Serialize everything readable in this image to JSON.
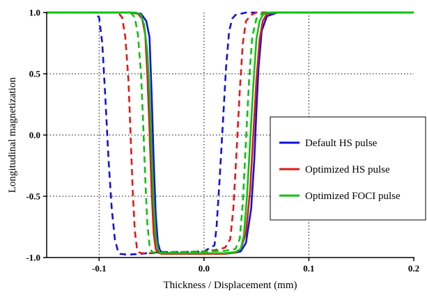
{
  "chart_data": {
    "type": "line",
    "title": "",
    "xlabel": "Thickness / Displacement (mm)",
    "ylabel": "Longitudinal magnetization",
    "xlim": [
      -0.15,
      0.2
    ],
    "ylim": [
      -1.0,
      1.0
    ],
    "xticks": [
      -0.1,
      0.0,
      0.1,
      0.2
    ],
    "xtick_labels": [
      "-0.1",
      "0.0",
      "0.1",
      "0.2"
    ],
    "yticks": [
      -1.0,
      -0.5,
      0.0,
      0.5,
      1.0
    ],
    "ytick_labels": [
      "-1.0",
      "-0.5",
      "0.0",
      "0.5",
      "1.0"
    ],
    "grid": "dotted, at x = -0.1, 0.0, 0.1 and y = -0.5, 0.0, 0.5",
    "legend_position": "right",
    "series": [
      {
        "name": "Default HS pulse",
        "color": "#1010e0",
        "style": "solid",
        "x": [
          -0.15,
          -0.07,
          -0.06,
          -0.055,
          -0.052,
          -0.05,
          -0.048,
          -0.046,
          -0.044,
          -0.042,
          -0.04,
          -0.03,
          -0.02,
          -0.01,
          0.0,
          0.01,
          0.02,
          0.03,
          0.035,
          0.04,
          0.045,
          0.048,
          0.05,
          0.052,
          0.055,
          0.06,
          0.07,
          0.2
        ],
        "y": [
          1.0,
          1.0,
          0.99,
          0.93,
          0.8,
          0.35,
          -0.2,
          -0.65,
          -0.88,
          -0.94,
          -0.96,
          -0.965,
          -0.965,
          -0.965,
          -0.965,
          -0.965,
          -0.965,
          -0.96,
          -0.95,
          -0.88,
          -0.6,
          -0.2,
          0.2,
          0.55,
          0.85,
          0.97,
          1.0,
          1.0
        ]
      },
      {
        "name": "",
        "color": "#1010e0",
        "style": "dashed",
        "x": [
          -0.15,
          -0.105,
          -0.1,
          -0.097,
          -0.094,
          -0.091,
          -0.088,
          -0.085,
          -0.082,
          -0.08,
          -0.075,
          -0.07,
          -0.06,
          -0.05,
          -0.04,
          -0.02,
          0.0,
          0.01,
          0.012,
          0.015,
          0.018,
          0.021,
          0.024,
          0.027,
          0.03,
          0.035,
          0.04,
          0.05,
          0.2
        ],
        "y": [
          1.0,
          1.0,
          0.96,
          0.75,
          0.3,
          -0.2,
          -0.6,
          -0.85,
          -0.95,
          -0.97,
          -0.975,
          -0.975,
          -0.97,
          -0.96,
          -0.955,
          -0.955,
          -0.95,
          -0.9,
          -0.75,
          -0.35,
          0.1,
          0.55,
          0.85,
          0.95,
          0.98,
          0.99,
          1.0,
          1.0,
          1.0
        ]
      },
      {
        "name": "Optimized HS pulse",
        "color": "#e01818",
        "style": "solid",
        "x": [
          -0.15,
          -0.07,
          -0.063,
          -0.059,
          -0.056,
          -0.054,
          -0.052,
          -0.05,
          -0.048,
          -0.046,
          -0.044,
          -0.04,
          -0.03,
          -0.02,
          -0.01,
          0.0,
          0.01,
          0.02,
          0.03,
          0.035,
          0.04,
          0.044,
          0.047,
          0.05,
          0.053,
          0.056,
          0.06,
          0.07,
          0.2
        ],
        "y": [
          1.0,
          1.0,
          0.99,
          0.95,
          0.82,
          0.5,
          0.05,
          -0.45,
          -0.8,
          -0.93,
          -0.96,
          -0.97,
          -0.97,
          -0.97,
          -0.97,
          -0.97,
          -0.97,
          -0.97,
          -0.96,
          -0.93,
          -0.8,
          -0.45,
          0.0,
          0.45,
          0.78,
          0.93,
          0.99,
          1.0,
          1.0
        ]
      },
      {
        "name": "",
        "color": "#e01818",
        "style": "dashed",
        "x": [
          -0.15,
          -0.082,
          -0.078,
          -0.075,
          -0.072,
          -0.07,
          -0.068,
          -0.066,
          -0.064,
          -0.062,
          -0.06,
          -0.055,
          -0.05,
          -0.04,
          -0.02,
          0.0,
          0.01,
          0.02,
          0.025,
          0.028,
          0.031,
          0.034,
          0.037,
          0.04,
          0.045,
          0.05,
          0.2
        ],
        "y": [
          1.0,
          1.0,
          0.96,
          0.8,
          0.45,
          0.0,
          -0.45,
          -0.78,
          -0.92,
          -0.955,
          -0.965,
          -0.965,
          -0.965,
          -0.96,
          -0.955,
          -0.95,
          -0.94,
          -0.92,
          -0.85,
          -0.6,
          -0.15,
          0.35,
          0.75,
          0.93,
          0.98,
          1.0,
          1.0
        ]
      },
      {
        "name": "Optimized FOCI pulse",
        "color": "#10c010",
        "style": "solid",
        "x": [
          -0.15,
          -0.065,
          -0.06,
          -0.057,
          -0.054,
          -0.052,
          -0.05,
          -0.048,
          -0.046,
          -0.044,
          -0.042,
          -0.04,
          -0.03,
          -0.02,
          -0.01,
          0.0,
          0.01,
          0.02,
          0.03,
          0.035,
          0.038,
          0.041,
          0.044,
          0.047,
          0.05,
          0.053,
          0.056,
          0.06,
          0.2
        ],
        "y": [
          1.0,
          1.0,
          0.98,
          0.9,
          0.68,
          0.35,
          -0.1,
          -0.55,
          -0.83,
          -0.93,
          -0.96,
          -0.965,
          -0.965,
          -0.965,
          -0.965,
          -0.965,
          -0.965,
          -0.965,
          -0.955,
          -0.93,
          -0.82,
          -0.5,
          -0.05,
          0.4,
          0.78,
          0.93,
          0.98,
          1.0,
          1.0
        ]
      },
      {
        "name": "",
        "color": "#10c010",
        "style": "dashed",
        "x": [
          -0.15,
          -0.07,
          -0.066,
          -0.063,
          -0.06,
          -0.058,
          -0.056,
          -0.054,
          -0.052,
          -0.05,
          -0.048,
          -0.045,
          -0.04,
          -0.02,
          0.0,
          0.02,
          0.03,
          0.034,
          0.037,
          0.04,
          0.043,
          0.046,
          0.05,
          0.055,
          0.06,
          0.2
        ],
        "y": [
          1.0,
          1.0,
          0.96,
          0.82,
          0.5,
          0.1,
          -0.35,
          -0.72,
          -0.9,
          -0.95,
          -0.96,
          -0.96,
          -0.96,
          -0.955,
          -0.95,
          -0.945,
          -0.93,
          -0.85,
          -0.55,
          -0.05,
          0.45,
          0.8,
          0.95,
          0.99,
          1.0,
          1.0
        ]
      }
    ]
  },
  "legend": {
    "items": [
      {
        "label": "Default HS pulse",
        "color": "#1010e0"
      },
      {
        "label": "Optimized HS pulse",
        "color": "#e01818"
      },
      {
        "label": "Optimized FOCI pulse",
        "color": "#10c010"
      }
    ]
  }
}
